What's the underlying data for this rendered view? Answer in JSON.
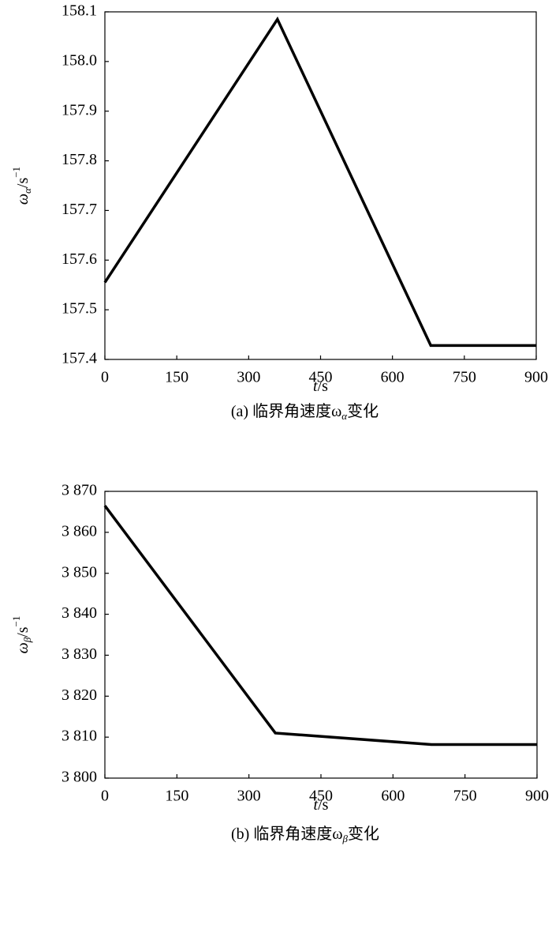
{
  "chart_data": [
    {
      "type": "line",
      "ylabel": [
        "ω",
        "α",
        "/s",
        "−1"
      ],
      "xlabel": [
        "t",
        "/s"
      ],
      "caption": [
        "(a) 临界角速度ω",
        "α",
        "变化"
      ],
      "series": [
        {
          "color": "#000000",
          "x": [
            0,
            360,
            680,
            900
          ],
          "values": [
            157.555,
            158.085,
            157.428,
            157.428
          ]
        }
      ],
      "xlim": [
        0,
        900
      ],
      "xticks": [
        0,
        150,
        300,
        450,
        600,
        750,
        900
      ],
      "ylim": [
        157.4,
        158.1
      ],
      "yticks": [
        157.4,
        157.5,
        157.6,
        157.7,
        157.8,
        157.9,
        {
          "value": 158,
          "label": "158.0"
        },
        158.1
      ]
    },
    {
      "type": "line",
      "ylabel": [
        "ω",
        "β",
        "/s",
        "−1"
      ],
      "xlabel": [
        "t",
        "/s"
      ],
      "caption": [
        "(b) 临界角速度ω",
        "β",
        "变化"
      ],
      "series": [
        {
          "color": "#000000",
          "x": [
            0,
            355,
            680,
            900
          ],
          "values": [
            3866.5,
            3811,
            3808.2,
            3808.2
          ]
        }
      ],
      "xlim": [
        0,
        900
      ],
      "xticks": [
        0,
        150,
        300,
        450,
        600,
        750,
        900
      ],
      "ylim": [
        3800,
        3870
      ],
      "yticks": [
        {
          "value": 3800,
          "label": "3 800"
        },
        {
          "value": 3810,
          "label": "3 810"
        },
        {
          "value": 3820,
          "label": "3 820"
        },
        {
          "value": 3830,
          "label": "3 830"
        },
        {
          "value": 3840,
          "label": "3 840"
        },
        {
          "value": 3850,
          "label": "3 850"
        },
        {
          "value": 3860,
          "label": "3 860"
        },
        {
          "value": 3870,
          "label": "3 870"
        }
      ]
    }
  ]
}
